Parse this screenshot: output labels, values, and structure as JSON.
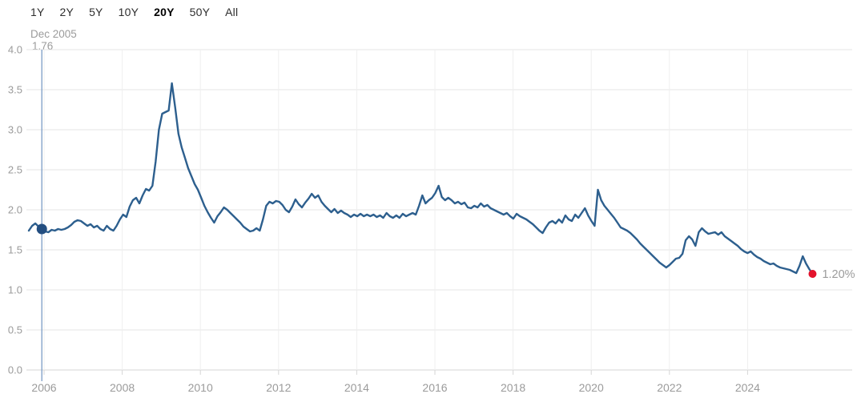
{
  "range_selector": {
    "options": [
      {
        "label": "1Y",
        "active": false
      },
      {
        "label": "2Y",
        "active": false
      },
      {
        "label": "5Y",
        "active": false
      },
      {
        "label": "10Y",
        "active": false
      },
      {
        "label": "20Y",
        "active": true
      },
      {
        "label": "50Y",
        "active": false
      },
      {
        "label": "All",
        "active": false
      }
    ]
  },
  "tooltip": {
    "date": "Dec 2005",
    "value": "1.76"
  },
  "colors": {
    "line": "#2d5f8e",
    "marker_dot": "#234e80",
    "end_dot": "#e3132c",
    "crosshair": "#7b9cc5",
    "grid_h": "#e6e6e6",
    "grid_v": "#efefef",
    "axis": "#d6d6d6",
    "tick_text": "#9b9b9b",
    "button_text": "#2e2e2e",
    "button_active_text": "#000000"
  },
  "chart_data": {
    "type": "line",
    "title": "",
    "xlabel": "",
    "ylabel": "",
    "ylim": [
      0.0,
      4.0
    ],
    "y_tick_labels": [
      "4.0",
      "3.5",
      "3.0",
      "2.5",
      "2.0",
      "1.5",
      "1.0",
      "0.5",
      "0.0"
    ],
    "x_tick_labels": [
      "2006",
      "2008",
      "2010",
      "2012",
      "2014",
      "2016",
      "2018",
      "2020",
      "2022",
      "2024"
    ],
    "grid": true,
    "legend": false,
    "series_name": "yield_percent_monthly",
    "start_month": "Aug 2005",
    "end_month": "Sep 2025",
    "highlight_index": 4,
    "highlight_point": {
      "date": "Dec 2005",
      "value": 1.76
    },
    "end_point": {
      "value": 1.2,
      "label": "1.20%"
    },
    "values": [
      1.74,
      1.8,
      1.83,
      1.79,
      1.76,
      1.73,
      1.72,
      1.75,
      1.74,
      1.76,
      1.75,
      1.76,
      1.78,
      1.81,
      1.85,
      1.87,
      1.86,
      1.83,
      1.8,
      1.82,
      1.78,
      1.8,
      1.76,
      1.74,
      1.8,
      1.76,
      1.74,
      1.8,
      1.88,
      1.94,
      1.91,
      2.04,
      2.12,
      2.15,
      2.08,
      2.18,
      2.26,
      2.24,
      2.3,
      2.6,
      3.0,
      3.2,
      3.22,
      3.24,
      3.58,
      3.28,
      2.95,
      2.78,
      2.65,
      2.52,
      2.42,
      2.32,
      2.25,
      2.15,
      2.05,
      1.97,
      1.9,
      1.84,
      1.92,
      1.97,
      2.03,
      2.0,
      1.96,
      1.92,
      1.88,
      1.84,
      1.79,
      1.76,
      1.73,
      1.74,
      1.77,
      1.74,
      1.88,
      2.05,
      2.1,
      2.08,
      2.11,
      2.1,
      2.06,
      2.0,
      1.97,
      2.04,
      2.13,
      2.07,
      2.03,
      2.09,
      2.14,
      2.2,
      2.15,
      2.18,
      2.1,
      2.05,
      2.01,
      1.97,
      2.01,
      1.96,
      1.99,
      1.96,
      1.94,
      1.91,
      1.94,
      1.92,
      1.95,
      1.92,
      1.94,
      1.92,
      1.94,
      1.91,
      1.93,
      1.9,
      1.96,
      1.92,
      1.9,
      1.93,
      1.9,
      1.95,
      1.92,
      1.94,
      1.96,
      1.94,
      2.05,
      2.18,
      2.08,
      2.12,
      2.15,
      2.21,
      2.3,
      2.16,
      2.12,
      2.15,
      2.12,
      2.08,
      2.1,
      2.07,
      2.09,
      2.03,
      2.02,
      2.05,
      2.03,
      2.08,
      2.04,
      2.06,
      2.02,
      2.0,
      1.98,
      1.96,
      1.94,
      1.96,
      1.92,
      1.89,
      1.95,
      1.92,
      1.9,
      1.88,
      1.85,
      1.82,
      1.78,
      1.74,
      1.71,
      1.78,
      1.84,
      1.86,
      1.83,
      1.88,
      1.84,
      1.93,
      1.88,
      1.86,
      1.94,
      1.9,
      1.96,
      2.02,
      1.93,
      1.86,
      1.8,
      2.25,
      2.12,
      2.05,
      2.0,
      1.95,
      1.9,
      1.84,
      1.78,
      1.76,
      1.74,
      1.71,
      1.67,
      1.63,
      1.58,
      1.54,
      1.5,
      1.46,
      1.42,
      1.38,
      1.34,
      1.31,
      1.28,
      1.31,
      1.35,
      1.39,
      1.4,
      1.45,
      1.62,
      1.67,
      1.63,
      1.55,
      1.72,
      1.77,
      1.73,
      1.7,
      1.71,
      1.72,
      1.69,
      1.72,
      1.67,
      1.64,
      1.61,
      1.58,
      1.55,
      1.51,
      1.48,
      1.46,
      1.48,
      1.44,
      1.41,
      1.39,
      1.36,
      1.34,
      1.32,
      1.33,
      1.3,
      1.28,
      1.27,
      1.26,
      1.25,
      1.23,
      1.21,
      1.3,
      1.42,
      1.33,
      1.26,
      1.2
    ]
  }
}
